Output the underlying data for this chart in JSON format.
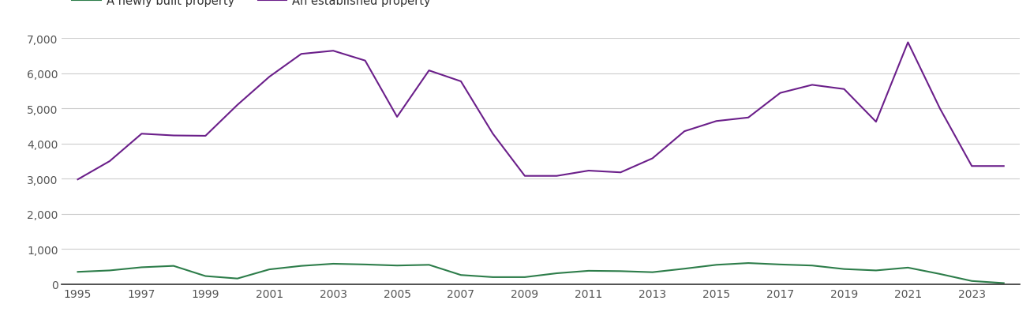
{
  "years": [
    1995,
    1996,
    1997,
    1998,
    1999,
    2000,
    2001,
    2002,
    2003,
    2004,
    2005,
    2006,
    2007,
    2008,
    2009,
    2010,
    2011,
    2012,
    2013,
    2014,
    2015,
    2016,
    2017,
    2018,
    2019,
    2020,
    2021,
    2022,
    2023,
    2024
  ],
  "new_homes": [
    350,
    390,
    480,
    520,
    230,
    160,
    420,
    520,
    580,
    560,
    530,
    550,
    260,
    200,
    200,
    310,
    380,
    370,
    340,
    440,
    550,
    600,
    560,
    530,
    430,
    390,
    470,
    290,
    90,
    30
  ],
  "established_homes": [
    2980,
    3500,
    4280,
    4230,
    4220,
    5100,
    5900,
    6550,
    6640,
    6360,
    4760,
    6080,
    5770,
    4280,
    3080,
    3080,
    3230,
    3180,
    3580,
    4350,
    4640,
    4740,
    5440,
    5670,
    5550,
    4620,
    6880,
    5000,
    3360,
    3360
  ],
  "new_color": "#2d7d4a",
  "established_color": "#6b1f8a",
  "new_label": "A newly built property",
  "established_label": "An established property",
  "ylim": [
    0,
    7000
  ],
  "yticks": [
    0,
    1000,
    2000,
    3000,
    4000,
    5000,
    6000,
    7000
  ],
  "xtick_years": [
    1995,
    1997,
    1999,
    2001,
    2003,
    2005,
    2007,
    2009,
    2011,
    2013,
    2015,
    2017,
    2019,
    2021,
    2023
  ],
  "xlim_min": 1994.5,
  "xlim_max": 2024.5,
  "background_color": "#ffffff",
  "grid_color": "#cccccc",
  "line_width": 1.5,
  "legend_fontsize": 10.5,
  "tick_fontsize": 10,
  "tick_color": "#555555"
}
